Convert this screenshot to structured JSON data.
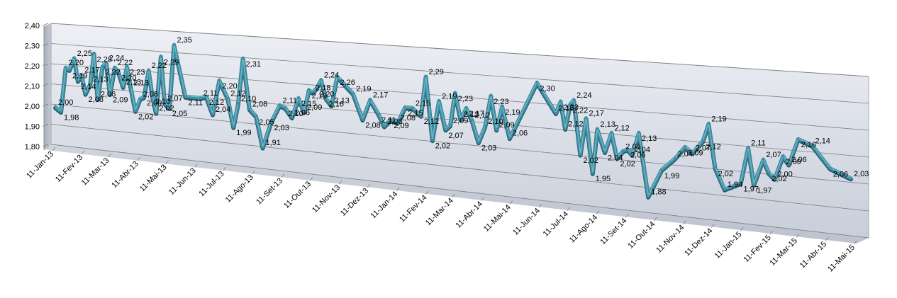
{
  "chart_data": {
    "type": "line",
    "style": "3d-perspective-line",
    "title": "",
    "xlabel": "",
    "ylabel": "",
    "ylim": [
      1.8,
      2.4
    ],
    "y_ticks": [
      "1,80",
      "1,90",
      "2,00",
      "2,10",
      "2,20",
      "2,30",
      "2,40"
    ],
    "grid": true,
    "legend": "none",
    "colors": {
      "line": "#3e8da2",
      "line_highlight": "#6fb8c8",
      "line_shadow": "#24596a",
      "wall": "#d7dce6",
      "wall_top": "#e8ebf1",
      "floor": "#c9cfdb",
      "side_wall": "#b7bdc9",
      "grid": "#7f7f7f"
    },
    "x_ticks": [
      "11-Jan-13",
      "11-Fev-13",
      "11-Mar-13",
      "11-Abr-13",
      "11-Mai-13",
      "11-Jun-13",
      "11-Jul-13",
      "11-Ago-13",
      "11-Set-13",
      "11-Out-13",
      "11-Nov-13",
      "11-Dez-13",
      "11-Jan-14",
      "11-Fev-14",
      "11-Mar-14",
      "11-Abr-14",
      "11-Mai-14",
      "11-Jun-14",
      "11-Jul-14",
      "11-Ago-14",
      "11-Set-14",
      "11-Out-14",
      "11-Nov-14",
      "11-Dez-14",
      "11-Jan-15",
      "11-Fev-15",
      "11-Mar-15",
      "11-Abr-15",
      "11-Mai-15"
    ],
    "x_range": [
      "2013-01-11",
      "2015-05-11"
    ],
    "series": [
      {
        "points": [
          [
            "2013-01-11",
            2.0,
            "2,00"
          ],
          [
            "2013-01-17",
            1.98,
            "1,98"
          ],
          [
            "2013-01-22",
            2.2,
            "2,20"
          ],
          [
            "2013-01-26",
            2.19,
            "2,19"
          ],
          [
            "2013-01-31",
            2.25,
            "2,25"
          ],
          [
            "2013-02-04",
            2.14,
            "2,14"
          ],
          [
            "2013-02-08",
            2.17,
            "2,17"
          ],
          [
            "2013-02-12",
            2.08,
            "2,08"
          ],
          [
            "2013-02-17",
            2.13,
            "2,13"
          ],
          [
            "2013-02-21",
            2.28,
            "2,28"
          ],
          [
            "2013-02-25",
            2.06,
            "2,06"
          ],
          [
            "2013-03-02",
            2.22,
            "2,22"
          ],
          [
            "2013-03-06",
            2.24,
            "2,24"
          ],
          [
            "2013-03-10",
            2.09,
            "2,09"
          ],
          [
            "2013-03-15",
            2.22,
            "2,22"
          ],
          [
            "2013-03-19",
            2.2,
            "2,20"
          ],
          [
            "2013-03-24",
            2.13,
            "2,13"
          ],
          [
            "2013-03-28",
            2.23,
            "2,23"
          ],
          [
            "2013-04-01",
            2.13,
            "2,13"
          ],
          [
            "2013-04-06",
            2.02,
            "2,02"
          ],
          [
            "2013-04-11",
            2.08,
            "2,08"
          ],
          [
            "2013-04-15",
            2.09,
            "2,09"
          ],
          [
            "2013-04-20",
            2.22,
            "2,22"
          ],
          [
            "2013-04-24",
            2.1,
            "2,10"
          ],
          [
            "2013-04-28",
            2.02,
            "2,02"
          ],
          [
            "2013-05-03",
            2.29,
            "2,29"
          ],
          [
            "2013-05-07",
            2.07,
            "2,07"
          ],
          [
            "2013-05-12",
            2.05,
            "2,05"
          ],
          [
            "2013-05-17",
            2.35,
            "2,35"
          ],
          [
            "2013-05-29",
            2.11,
            "2,11"
          ],
          [
            "2013-06-14",
            2.11,
            "2,11"
          ],
          [
            "2013-06-20",
            2.12,
            "2,12"
          ],
          [
            "2013-06-27",
            2.04,
            "2,04"
          ],
          [
            "2013-07-04",
            2.2,
            "2,20"
          ],
          [
            "2013-07-13",
            2.12,
            "2,12"
          ],
          [
            "2013-07-19",
            1.99,
            "1,99"
          ],
          [
            "2013-07-24",
            2.1,
            "2,10"
          ],
          [
            "2013-07-29",
            2.31,
            "2,31"
          ],
          [
            "2013-08-05",
            2.08,
            "2,08"
          ],
          [
            "2013-08-12",
            2.05,
            "2,05"
          ],
          [
            "2013-08-19",
            1.91,
            "1,91"
          ],
          [
            "2013-08-28",
            2.03,
            "2,03"
          ],
          [
            "2013-09-06",
            2.11,
            "2,11"
          ],
          [
            "2013-09-12",
            2.1,
            "2,10"
          ],
          [
            "2013-09-19",
            2.06,
            "2,06"
          ],
          [
            "2013-09-26",
            2.15,
            "2,15"
          ],
          [
            "2013-10-02",
            2.09,
            "2,09"
          ],
          [
            "2013-10-07",
            2.19,
            "2,19"
          ],
          [
            "2013-10-11",
            2.18,
            "2,18"
          ],
          [
            "2013-10-15",
            2.2,
            "2,20"
          ],
          [
            "2013-10-20",
            2.24,
            "2,24"
          ],
          [
            "2013-10-25",
            2.16,
            "2,16"
          ],
          [
            "2013-10-31",
            2.13,
            "2,13"
          ],
          [
            "2013-11-06",
            2.26,
            "2,26"
          ],
          [
            "2013-11-23",
            2.19,
            "2,19"
          ],
          [
            "2013-12-03",
            2.08,
            "2,08"
          ],
          [
            "2013-12-11",
            2.17,
            "2,17"
          ],
          [
            "2013-12-20",
            2.11,
            "2,11"
          ],
          [
            "2013-12-26",
            2.06,
            "2,06"
          ],
          [
            "2014-01-02",
            2.09,
            "2,09"
          ],
          [
            "2014-01-09",
            2.08,
            "2,08"
          ],
          [
            "2014-01-17",
            2.15,
            "2,15"
          ],
          [
            "2014-01-25",
            2.15,
            "2,15"
          ],
          [
            "2014-02-03",
            2.12,
            "2,12"
          ],
          [
            "2014-02-08",
            2.29,
            "2,29"
          ],
          [
            "2014-02-15",
            2.02,
            "2,02"
          ],
          [
            "2014-02-22",
            2.19,
            "2,19"
          ],
          [
            "2014-03-01",
            2.07,
            "2,07"
          ],
          [
            "2014-03-06",
            2.09,
            "2,09"
          ],
          [
            "2014-03-11",
            2.23,
            "2,23"
          ],
          [
            "2014-03-17",
            2.12,
            "2,12"
          ],
          [
            "2014-03-23",
            2.17,
            "2,17"
          ],
          [
            "2014-03-29",
            2.12,
            "2,12"
          ],
          [
            "2014-04-05",
            2.03,
            "2,03"
          ],
          [
            "2014-04-12",
            2.1,
            "2,10"
          ],
          [
            "2014-04-18",
            2.23,
            "2,23"
          ],
          [
            "2014-04-24",
            2.09,
            "2,09"
          ],
          [
            "2014-04-30",
            2.19,
            "2,19"
          ],
          [
            "2014-05-08",
            2.06,
            "2,06"
          ],
          [
            "2014-06-06",
            2.3,
            "2,30"
          ],
          [
            "2014-06-26",
            2.18,
            "2,18"
          ],
          [
            "2014-07-01",
            2.23,
            "2,23"
          ],
          [
            "2014-07-06",
            2.12,
            "2,12"
          ],
          [
            "2014-07-11",
            2.22,
            "2,22"
          ],
          [
            "2014-07-15",
            2.24,
            "2,24"
          ],
          [
            "2014-07-22",
            2.02,
            "2,02"
          ],
          [
            "2014-07-28",
            2.17,
            "2,17"
          ],
          [
            "2014-08-04",
            1.95,
            "1,95"
          ],
          [
            "2014-08-09",
            2.13,
            "2,13"
          ],
          [
            "2014-08-17",
            2.04,
            "2,04"
          ],
          [
            "2014-08-24",
            2.12,
            "2,12"
          ],
          [
            "2014-08-30",
            2.02,
            "2,02"
          ],
          [
            "2014-09-05",
            2.05,
            "2,05"
          ],
          [
            "2014-09-10",
            2.06,
            "2,06"
          ],
          [
            "2014-09-15",
            2.04,
            "2,04"
          ],
          [
            "2014-09-22",
            2.13,
            "2,13"
          ],
          [
            "2014-10-02",
            1.88,
            "1,88"
          ],
          [
            "2014-10-16",
            1.99,
            "1,99"
          ],
          [
            "2014-10-30",
            2.04,
            "2,04"
          ],
          [
            "2014-11-10",
            2.09,
            "2,09"
          ],
          [
            "2014-11-18",
            2.07,
            "2,07"
          ],
          [
            "2014-11-29",
            2.12,
            "2,12"
          ],
          [
            "2014-12-05",
            2.19,
            "2,19"
          ],
          [
            "2014-12-12",
            2.02,
            "2,02"
          ],
          [
            "2014-12-22",
            1.94,
            "1,94"
          ],
          [
            "2015-01-08",
            1.97,
            "1,97"
          ],
          [
            "2015-01-16",
            2.11,
            "2,11"
          ],
          [
            "2015-01-22",
            1.97,
            "1,97"
          ],
          [
            "2015-02-01",
            2.07,
            "2,07"
          ],
          [
            "2015-02-07",
            2.02,
            "2,02"
          ],
          [
            "2015-02-13",
            2.0,
            "2,00"
          ],
          [
            "2015-02-22",
            2.09,
            "2,09"
          ],
          [
            "2015-02-28",
            2.06,
            "2,06"
          ],
          [
            "2015-03-10",
            2.16,
            "2,16"
          ],
          [
            "2015-03-25",
            2.14,
            "2,14"
          ],
          [
            "2015-04-13",
            2.06,
            "2,06"
          ],
          [
            "2015-05-05",
            2.03,
            "2,03"
          ]
        ]
      }
    ]
  }
}
